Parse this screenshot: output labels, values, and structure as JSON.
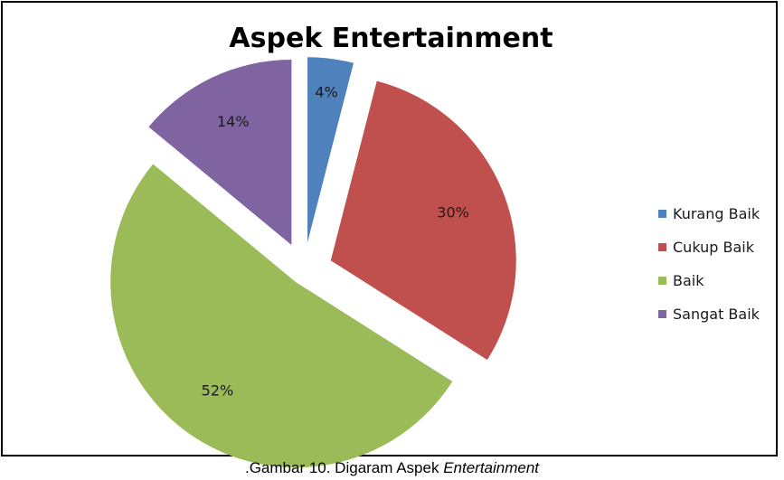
{
  "chart_data": {
    "type": "pie",
    "title": "Aspek Entertainment",
    "slices": [
      {
        "name": "Kurang Baik",
        "value": 4,
        "label": "4%",
        "color": "#4F81BD"
      },
      {
        "name": "Cukup Baik",
        "value": 30,
        "label": "30%",
        "color": "#C0504D"
      },
      {
        "name": "Baik",
        "value": 52,
        "label": "52%",
        "color": "#9BBB59"
      },
      {
        "name": "Sangat Baik",
        "value": 14,
        "label": "14%",
        "color": "#8064A2"
      }
    ],
    "legend_position": "right",
    "exploded": true
  },
  "caption": {
    "prefix": ".Gambar 10. Digaram Aspek ",
    "emphasis": "Entertainment"
  }
}
